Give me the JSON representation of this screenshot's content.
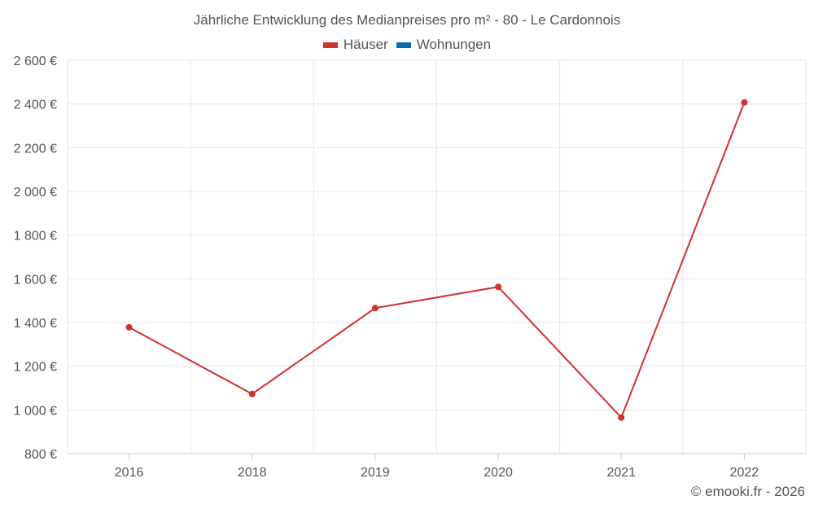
{
  "chart_data": {
    "type": "line",
    "title": "Jährliche Entwicklung des Medianpreises pro m² - 80 - Le Cardonnois",
    "categories": [
      "2016",
      "2018",
      "2019",
      "2020",
      "2021",
      "2022"
    ],
    "series": [
      {
        "name": "Häuser",
        "color": "#d32f2f",
        "values": [
          1378,
          1073,
          1466,
          1563,
          965,
          2407
        ]
      },
      {
        "name": "Wohnungen",
        "color": "#0d6aa8",
        "values": [
          null,
          null,
          null,
          null,
          null,
          null
        ]
      }
    ],
    "y_ticks": [
      "800 €",
      "1 000 €",
      "1 200 €",
      "1 400 €",
      "1 600 €",
      "1 800 €",
      "2 000 €",
      "2 200 €",
      "2 400 €",
      "2 600 €"
    ],
    "ylim": [
      800,
      2600
    ],
    "xlabel": "",
    "ylabel": "",
    "grid": true,
    "legend_position": "top-center"
  },
  "credit": "© emooki.fr - 2026"
}
